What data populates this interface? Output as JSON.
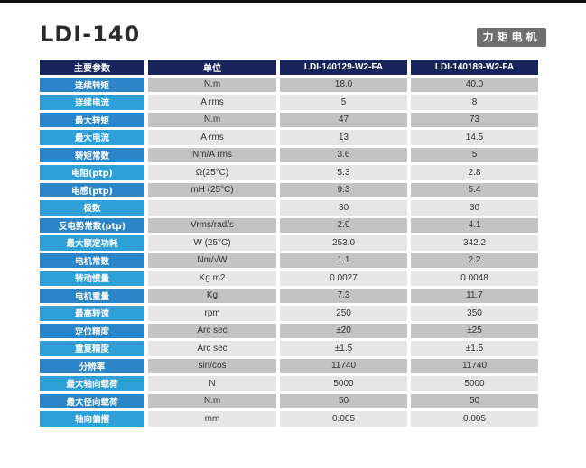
{
  "header": {
    "title": "LDI-140",
    "badge": "力矩电机"
  },
  "table": {
    "columns": [
      "主要参数",
      "单位",
      "LDI-140129-W2-FA",
      "LDI-140189-W2-FA"
    ],
    "rows": [
      {
        "param": "连续转矩",
        "unit": "N.m",
        "a": "18.0",
        "b": "40.0"
      },
      {
        "param": "连续电流",
        "unit": "A rms",
        "a": "5",
        "b": "8"
      },
      {
        "param": "最大转矩",
        "unit": "N.m",
        "a": "47",
        "b": "73"
      },
      {
        "param": "最大电流",
        "unit": "A rms",
        "a": "13",
        "b": "14.5"
      },
      {
        "param": "转矩常数",
        "unit": "Nm/A rms",
        "a": "3.6",
        "b": "5"
      },
      {
        "param": "电阻(ptp)",
        "unit": "Ω(25°C)",
        "a": "5.3",
        "b": "2.8"
      },
      {
        "param": "电感(ptp)",
        "unit": "mH (25°C)",
        "a": "9.3",
        "b": "5.4"
      },
      {
        "param": "极数",
        "unit": "",
        "a": "30",
        "b": "30"
      },
      {
        "param": "反电势常数(ptp)",
        "unit": "Vrms/rad/s",
        "a": "2.9",
        "b": "4.1"
      },
      {
        "param": "最大额定功耗",
        "unit": "W (25°C)",
        "a": "253.0",
        "b": "342.2"
      },
      {
        "param": "电机常数",
        "unit": "Nm/√W",
        "a": "1.1",
        "b": "2.2"
      },
      {
        "param": "转动惯量",
        "unit": "Kg.m2",
        "a": "0.0027",
        "b": "0.0048"
      },
      {
        "param": "电机重量",
        "unit": "Kg",
        "a": "7.3",
        "b": "11.7"
      },
      {
        "param": "最高转速",
        "unit": "rpm",
        "a": "250",
        "b": "350"
      },
      {
        "param": "定位精度",
        "unit": "Arc sec",
        "a": "±20",
        "b": "±25"
      },
      {
        "param": "重复精度",
        "unit": "Arc sec",
        "a": "±1.5",
        "b": "±1.5"
      },
      {
        "param": "分辨率",
        "unit": "sin/cos",
        "a": "11740",
        "b": "11740"
      },
      {
        "param": "最大轴向载荷",
        "unit": "N",
        "a": "5000",
        "b": "5000"
      },
      {
        "param": "最大径向载荷",
        "unit": "N.m",
        "a": "50",
        "b": "50"
      },
      {
        "param": "轴向偏摆",
        "unit": "mm",
        "a": "0.005",
        "b": "0.005"
      }
    ]
  },
  "colors": {
    "header_bg": "#17255c",
    "param_dark": "#2a86c8",
    "param_light": "#2f9fd8",
    "row_dark": "#c3c3c3",
    "row_light": "#e6e6e6",
    "badge_bg": "#6f6f6f"
  }
}
